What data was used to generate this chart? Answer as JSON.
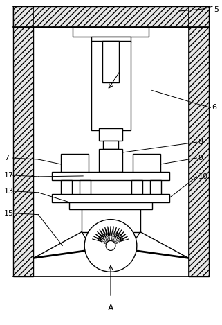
{
  "bg_color": "#ffffff",
  "line_color": "#000000",
  "figsize": [
    3.21,
    4.69
  ],
  "dpi": 100,
  "labels": [
    "5",
    "6",
    "7",
    "8",
    "9",
    "10",
    "13",
    "15",
    "17",
    "A"
  ]
}
